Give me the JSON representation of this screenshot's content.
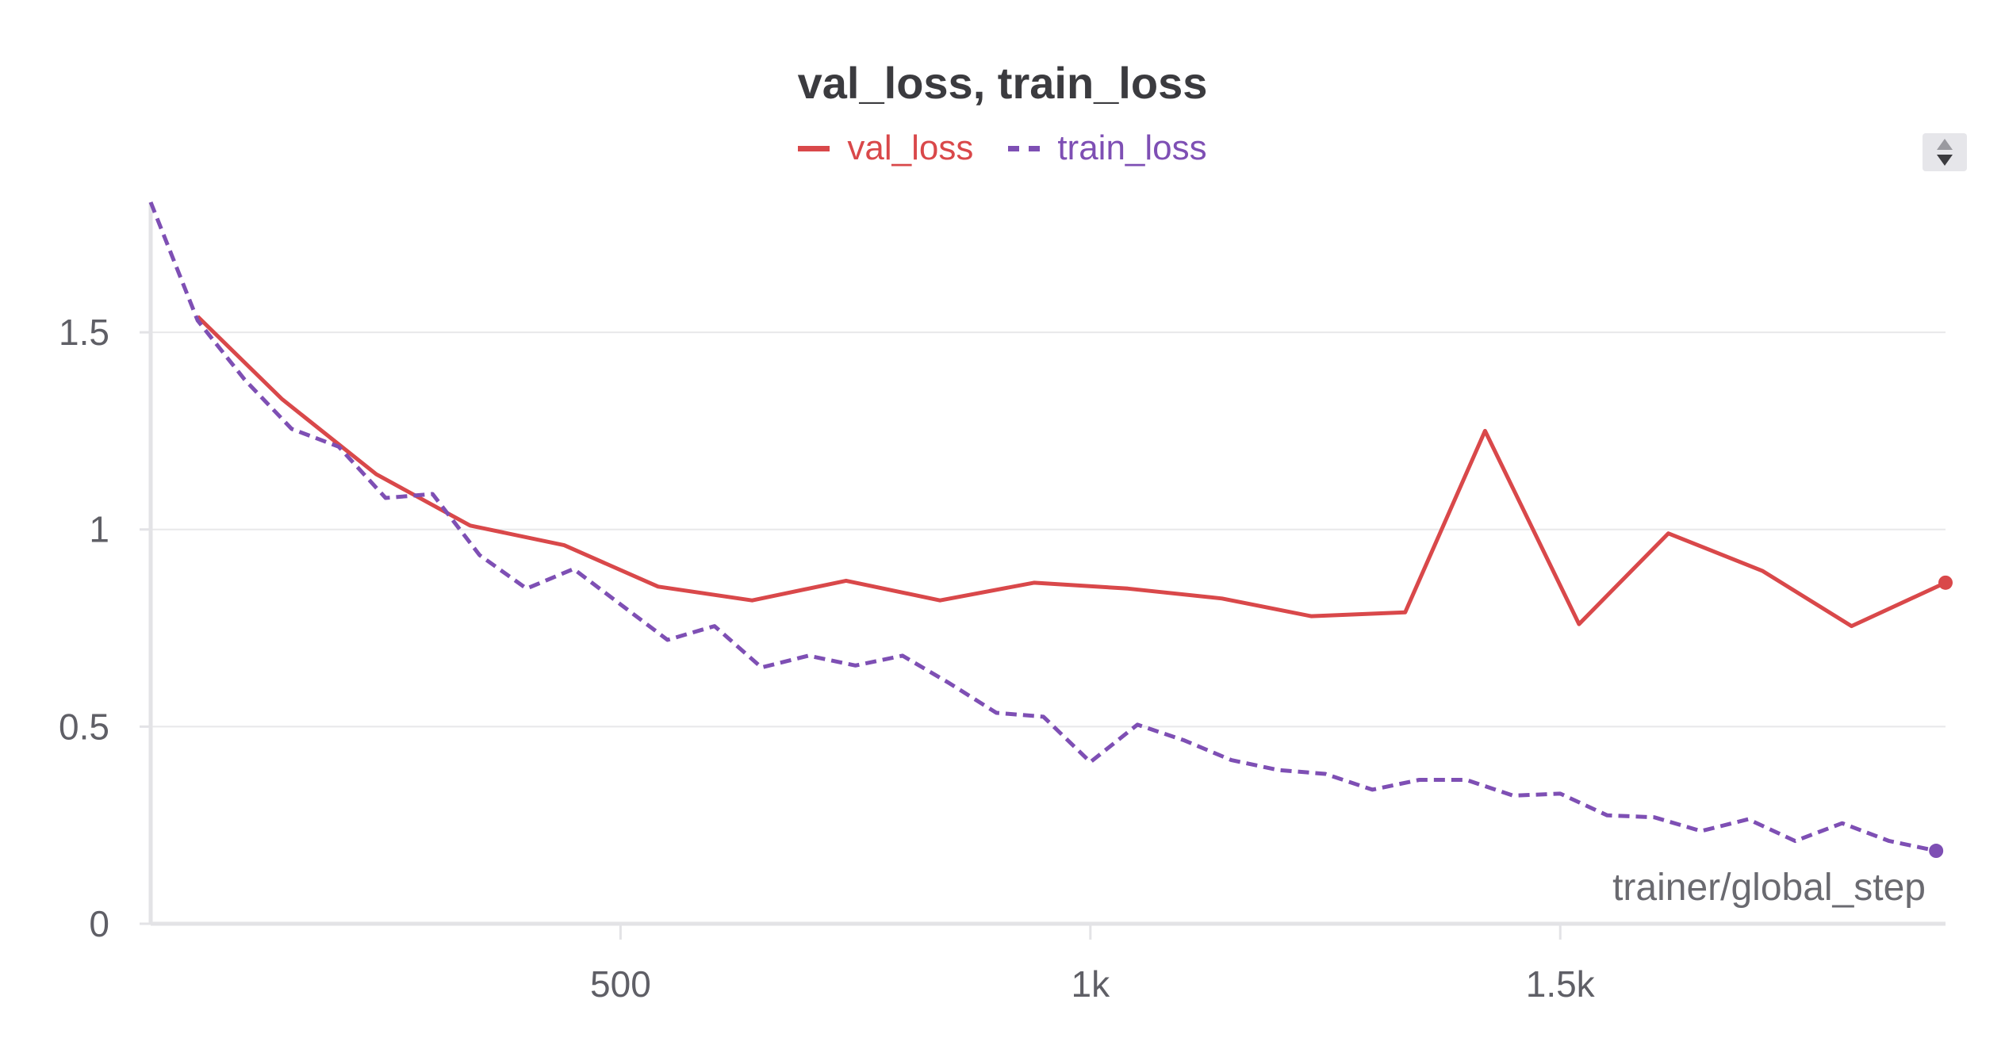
{
  "chart_data": {
    "type": "line",
    "title": "val_loss, train_loss",
    "xlabel": "trainer/global_step",
    "ylabel": "",
    "xlim": [
      0,
      1910
    ],
    "ylim": [
      0,
      1.83
    ],
    "grid": true,
    "legend_position": "top-center",
    "x_ticks": [
      {
        "value": 500,
        "label": "500"
      },
      {
        "value": 1000,
        "label": "1k"
      },
      {
        "value": 1500,
        "label": "1.5k"
      }
    ],
    "y_ticks": [
      {
        "value": 0,
        "label": "0"
      },
      {
        "value": 0.5,
        "label": "0.5"
      },
      {
        "value": 1,
        "label": "1"
      },
      {
        "value": 1.5,
        "label": "1.5"
      }
    ],
    "series": [
      {
        "name": "val_loss",
        "color": "#d9484a",
        "style": "solid",
        "points": [
          [
            50,
            1.54
          ],
          [
            140,
            1.33
          ],
          [
            240,
            1.14
          ],
          [
            340,
            1.01
          ],
          [
            440,
            0.96
          ],
          [
            540,
            0.855
          ],
          [
            640,
            0.82
          ],
          [
            740,
            0.87
          ],
          [
            840,
            0.82
          ],
          [
            940,
            0.865
          ],
          [
            1040,
            0.85
          ],
          [
            1140,
            0.825
          ],
          [
            1235,
            0.78
          ],
          [
            1335,
            0.79
          ],
          [
            1420,
            1.25
          ],
          [
            1520,
            0.76
          ],
          [
            1615,
            0.99
          ],
          [
            1715,
            0.895
          ],
          [
            1810,
            0.755
          ],
          [
            1910,
            0.865
          ]
        ]
      },
      {
        "name": "train_loss",
        "color": "#7e4fb4",
        "style": "dashed",
        "points": [
          [
            0,
            1.83
          ],
          [
            50,
            1.53
          ],
          [
            100,
            1.38
          ],
          [
            150,
            1.255
          ],
          [
            200,
            1.21
          ],
          [
            250,
            1.08
          ],
          [
            300,
            1.09
          ],
          [
            350,
            0.935
          ],
          [
            400,
            0.85
          ],
          [
            450,
            0.9
          ],
          [
            500,
            0.81
          ],
          [
            550,
            0.72
          ],
          [
            600,
            0.755
          ],
          [
            650,
            0.65
          ],
          [
            700,
            0.68
          ],
          [
            750,
            0.655
          ],
          [
            800,
            0.68
          ],
          [
            850,
            0.61
          ],
          [
            900,
            0.535
          ],
          [
            950,
            0.525
          ],
          [
            1000,
            0.41
          ],
          [
            1050,
            0.505
          ],
          [
            1100,
            0.465
          ],
          [
            1150,
            0.415
          ],
          [
            1200,
            0.39
          ],
          [
            1250,
            0.38
          ],
          [
            1300,
            0.34
          ],
          [
            1350,
            0.365
          ],
          [
            1400,
            0.365
          ],
          [
            1450,
            0.325
          ],
          [
            1500,
            0.33
          ],
          [
            1550,
            0.275
          ],
          [
            1600,
            0.27
          ],
          [
            1650,
            0.235
          ],
          [
            1700,
            0.265
          ],
          [
            1750,
            0.21
          ],
          [
            1800,
            0.255
          ],
          [
            1850,
            0.21
          ],
          [
            1900,
            0.185
          ]
        ]
      }
    ]
  }
}
